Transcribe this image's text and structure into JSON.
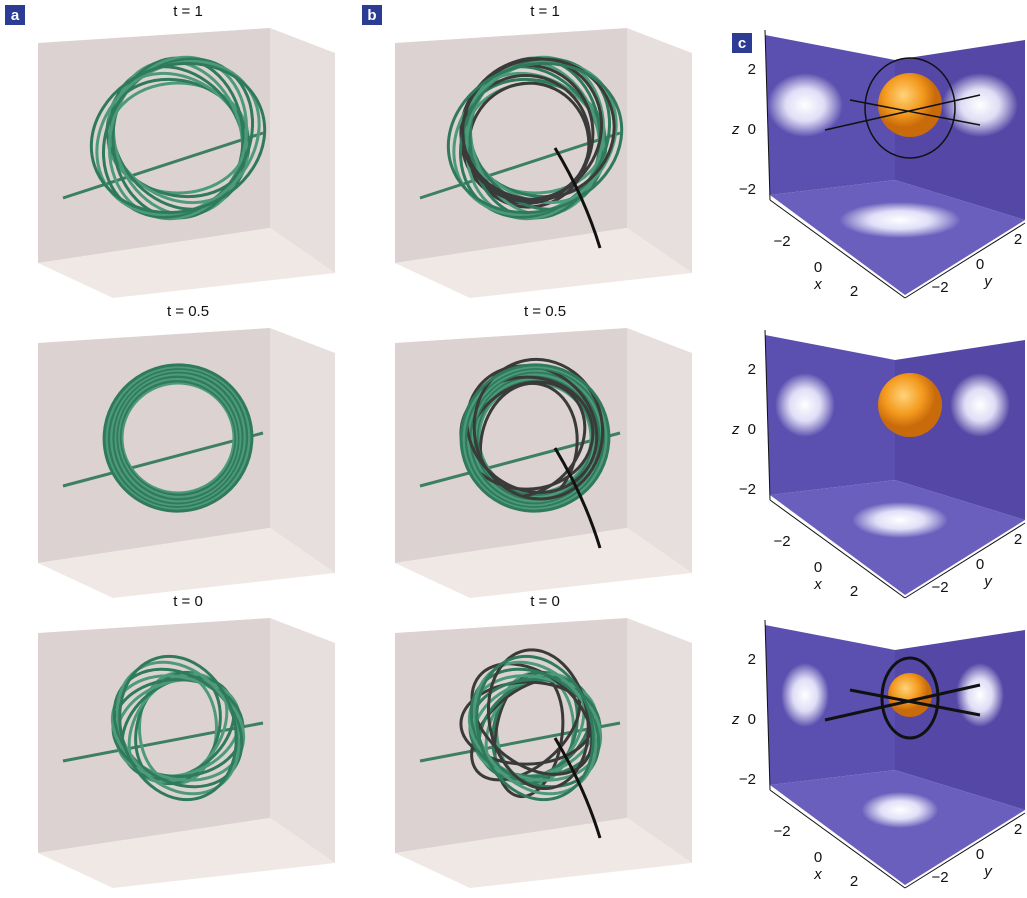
{
  "panels": [
    {
      "label": "a",
      "frames": [
        {
          "time": "t = 1"
        },
        {
          "time": "t = 0.5"
        },
        {
          "time": "t = 0"
        }
      ]
    },
    {
      "label": "b",
      "frames": [
        {
          "time": "t = 1"
        },
        {
          "time": "t = 0.5"
        },
        {
          "time": "t = 0"
        }
      ]
    },
    {
      "label": "c",
      "frames": [
        {
          "z_label": "z",
          "z_ticks": [
            "2",
            "0",
            "−2"
          ],
          "x_label": "x",
          "x_ticks": [
            "−2",
            "0",
            "2"
          ],
          "y_label": "y",
          "y_ticks": [
            "−2",
            "0",
            "2"
          ]
        },
        {
          "z_label": "z",
          "z_ticks": [
            "2",
            "0",
            "−2"
          ],
          "x_label": "x",
          "x_ticks": [
            "−2",
            "0",
            "2"
          ],
          "y_label": "y",
          "y_ticks": [
            "−2",
            "0",
            "2"
          ]
        },
        {
          "z_label": "z",
          "z_ticks": [
            "2",
            "0",
            "−2"
          ],
          "x_label": "x",
          "x_ticks": [
            "−2",
            "0",
            "2"
          ],
          "y_label": "y",
          "y_ticks": [
            "−2",
            "0",
            "2"
          ]
        }
      ]
    }
  ]
}
